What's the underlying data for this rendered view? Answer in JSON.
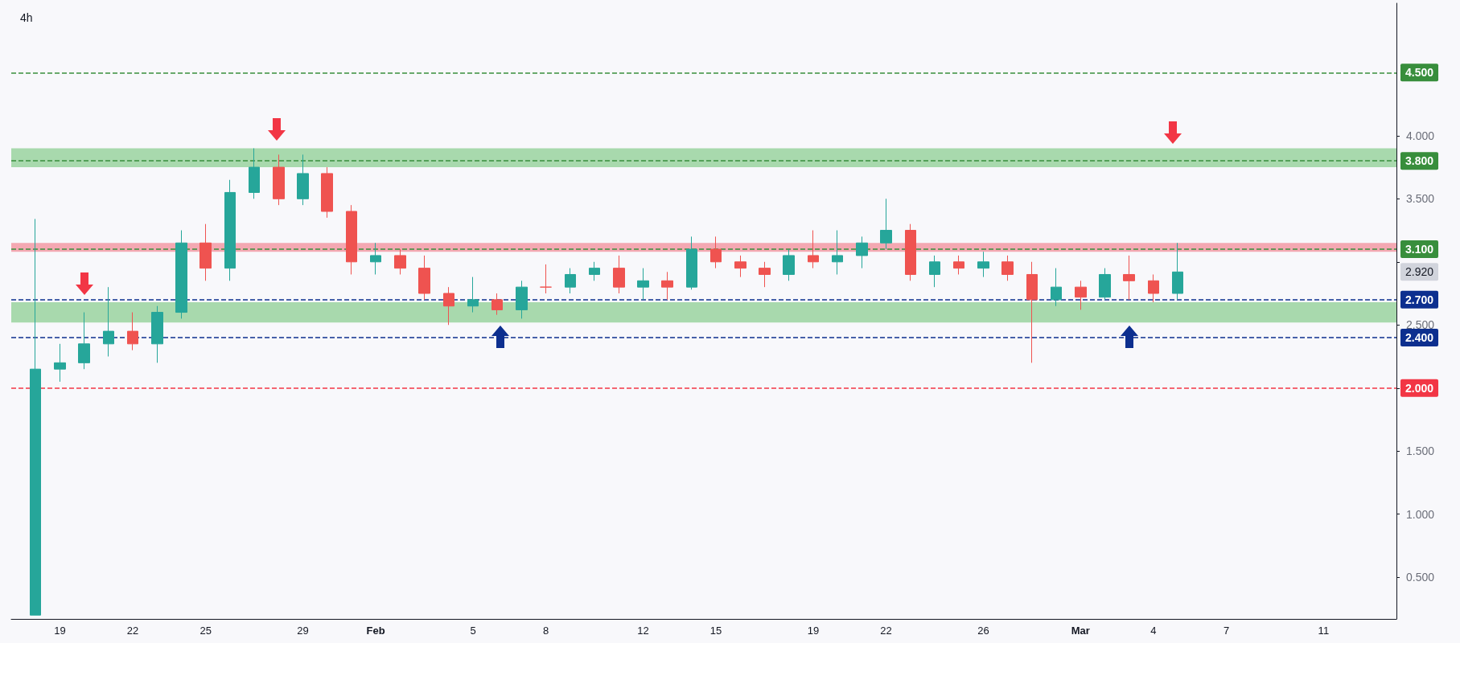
{
  "chart_data": {
    "type": "candlestick",
    "title": "4h",
    "x": [
      "--01-18",
      "--01-19",
      "--01-20",
      "--01-21",
      "--01-22",
      "--01-23",
      "--01-24",
      "--01-25",
      "--01-26",
      "--01-27",
      "--01-28",
      "--01-29",
      "--01-30",
      "--01-31",
      "--02-01",
      "--02-02",
      "--02-03",
      "--02-04",
      "--02-05",
      "--02-06",
      "--02-07",
      "--02-08",
      "--02-09",
      "--02-10",
      "--02-11",
      "--02-12",
      "--02-13",
      "--02-14",
      "--02-15",
      "--02-16",
      "--02-17",
      "--02-18",
      "--02-19",
      "--02-20",
      "--02-21",
      "--02-22",
      "--02-23",
      "--02-24",
      "--02-25",
      "--02-26",
      "--02-27",
      "--02-28",
      "--02-29",
      "--03-01",
      "--03-02",
      "--03-03",
      "--03-04",
      "--03-05"
    ],
    "ohlc": [
      [
        0.2,
        3.34,
        0.2,
        2.15
      ],
      [
        2.15,
        2.35,
        2.05,
        2.2
      ],
      [
        2.2,
        2.6,
        2.15,
        2.35
      ],
      [
        2.35,
        2.8,
        2.25,
        2.45
      ],
      [
        2.45,
        2.6,
        2.3,
        2.35
      ],
      [
        2.35,
        2.65,
        2.2,
        2.6
      ],
      [
        2.6,
        3.25,
        2.55,
        3.15
      ],
      [
        3.15,
        3.3,
        2.85,
        2.95
      ],
      [
        2.95,
        3.65,
        2.85,
        3.55
      ],
      [
        3.55,
        3.9,
        3.5,
        3.75
      ],
      [
        3.75,
        3.85,
        3.45,
        3.5
      ],
      [
        3.5,
        3.85,
        3.45,
        3.7
      ],
      [
        3.7,
        3.75,
        3.35,
        3.4
      ],
      [
        3.4,
        3.45,
        2.9,
        3.0
      ],
      [
        3.0,
        3.15,
        2.9,
        3.05
      ],
      [
        3.05,
        3.1,
        2.9,
        2.95
      ],
      [
        2.95,
        3.05,
        2.7,
        2.75
      ],
      [
        2.75,
        2.8,
        2.5,
        2.65
      ],
      [
        2.65,
        2.88,
        2.6,
        2.7
      ],
      [
        2.7,
        2.75,
        2.58,
        2.62
      ],
      [
        2.62,
        2.85,
        2.55,
        2.8
      ],
      [
        2.8,
        2.98,
        2.75,
        2.8
      ],
      [
        2.8,
        2.95,
        2.75,
        2.9
      ],
      [
        2.9,
        3.0,
        2.85,
        2.95
      ],
      [
        2.95,
        3.05,
        2.75,
        2.8
      ],
      [
        2.8,
        2.95,
        2.7,
        2.85
      ],
      [
        2.85,
        2.92,
        2.7,
        2.8
      ],
      [
        2.8,
        3.2,
        2.78,
        3.1
      ],
      [
        3.1,
        3.2,
        2.95,
        3.0
      ],
      [
        3.0,
        3.05,
        2.88,
        2.95
      ],
      [
        2.95,
        3.0,
        2.8,
        2.9
      ],
      [
        2.9,
        3.1,
        2.85,
        3.05
      ],
      [
        3.05,
        3.25,
        2.95,
        3.0
      ],
      [
        3.0,
        3.25,
        2.9,
        3.05
      ],
      [
        3.05,
        3.2,
        2.95,
        3.15
      ],
      [
        3.15,
        3.5,
        3.1,
        3.25
      ],
      [
        3.25,
        3.3,
        2.85,
        2.9
      ],
      [
        2.9,
        3.05,
        2.8,
        3.0
      ],
      [
        3.0,
        3.05,
        2.9,
        2.95
      ],
      [
        2.95,
        3.08,
        2.88,
        3.0
      ],
      [
        3.0,
        3.05,
        2.85,
        2.9
      ],
      [
        2.9,
        3.0,
        2.2,
        2.7
      ],
      [
        2.7,
        2.95,
        2.65,
        2.8
      ],
      [
        2.8,
        2.85,
        2.62,
        2.72
      ],
      [
        2.72,
        2.95,
        2.7,
        2.9
      ],
      [
        2.9,
        3.05,
        2.7,
        2.85
      ],
      [
        2.85,
        2.9,
        2.68,
        2.75
      ],
      [
        2.75,
        3.15,
        2.7,
        2.92
      ]
    ],
    "colors": [
      "#26a69a",
      "#26a69a",
      "#26a69a",
      "#26a69a",
      "#ef5350",
      "#26a69a",
      "#26a69a",
      "#ef5350",
      "#26a69a",
      "#26a69a",
      "#ef5350",
      "#26a69a",
      "#ef5350",
      "#ef5350",
      "#26a69a",
      "#ef5350",
      "#ef5350",
      "#ef5350",
      "#26a69a",
      "#ef5350",
      "#26a69a",
      "#ef5350",
      "#26a69a",
      "#26a69a",
      "#ef5350",
      "#26a69a",
      "#ef5350",
      "#26a69a",
      "#ef5350",
      "#ef5350",
      "#ef5350",
      "#26a69a",
      "#ef5350",
      "#26a69a",
      "#26a69a",
      "#26a69a",
      "#ef5350",
      "#26a69a",
      "#ef5350",
      "#26a69a",
      "#ef5350",
      "#ef5350",
      "#26a69a",
      "#ef5350",
      "#26a69a",
      "#ef5350",
      "#ef5350",
      "#26a69a"
    ],
    "xlim": [
      "--01-17",
      "--03-14"
    ],
    "xticks": [
      {
        "value": "--01-19",
        "label": "19"
      },
      {
        "value": "--01-22",
        "label": "22"
      },
      {
        "value": "--01-25",
        "label": "25"
      },
      {
        "value": "--01-29",
        "label": "29"
      },
      {
        "value": "--02-01",
        "label": "Feb"
      },
      {
        "value": "--02-05",
        "label": "5"
      },
      {
        "value": "--02-08",
        "label": "8"
      },
      {
        "value": "--02-12",
        "label": "12"
      },
      {
        "value": "--02-15",
        "label": "15"
      },
      {
        "value": "--02-19",
        "label": "19"
      },
      {
        "value": "--02-22",
        "label": "22"
      },
      {
        "value": "--02-26",
        "label": "26"
      },
      {
        "value": "--03-01",
        "label": "Mar"
      },
      {
        "value": "--03-04",
        "label": "4"
      },
      {
        "value": "--03-07",
        "label": "7"
      },
      {
        "value": "--03-11",
        "label": "11"
      }
    ],
    "ylim": [
      0.17,
      5.05
    ],
    "yticks": [
      {
        "value": 0.5,
        "label": "0.500"
      },
      {
        "value": 1.0,
        "label": "1.000"
      },
      {
        "value": 1.5,
        "label": "1.500"
      },
      {
        "value": 2.0,
        "label": null
      },
      {
        "value": 2.5,
        "label": "2.500"
      },
      {
        "value": 3.0,
        "label": null
      },
      {
        "value": 3.5,
        "label": "3.500"
      },
      {
        "value": 4.0,
        "label": "4.000"
      }
    ],
    "ref_lines": [
      {
        "axis": "y",
        "value": 4.5,
        "label": "4.500",
        "color": "#388e3c",
        "line_style": "dashed"
      },
      {
        "axis": "y",
        "value": 3.8,
        "label": "3.800",
        "color": "#388e3c",
        "line_style": "dashed"
      },
      {
        "axis": "y",
        "value": 3.1,
        "label": "3.100",
        "color": "#388e3c",
        "line_style": "dashed"
      },
      {
        "axis": "y",
        "value": 2.7,
        "label": "2.700",
        "color": "#0d2f8f",
        "line_style": "dashed"
      },
      {
        "axis": "y",
        "value": 2.4,
        "label": "2.400",
        "color": "#0d2f8f",
        "line_style": "dashed"
      },
      {
        "axis": "y",
        "value": 2.0,
        "label": "2.000",
        "color": "#f23645",
        "line_style": "dashed"
      }
    ],
    "bands": [
      {
        "axis": "y",
        "from": 3.75,
        "to": 3.9,
        "color": "#a8d9ad"
      },
      {
        "axis": "y",
        "from": 2.52,
        "to": 2.68,
        "color": "#a8d9ad"
      },
      {
        "axis": "y",
        "from": 3.08,
        "to": 3.15,
        "color": "#f4a8b2"
      }
    ],
    "annotations": [
      "2.920"
    ],
    "grid": false
  }
}
